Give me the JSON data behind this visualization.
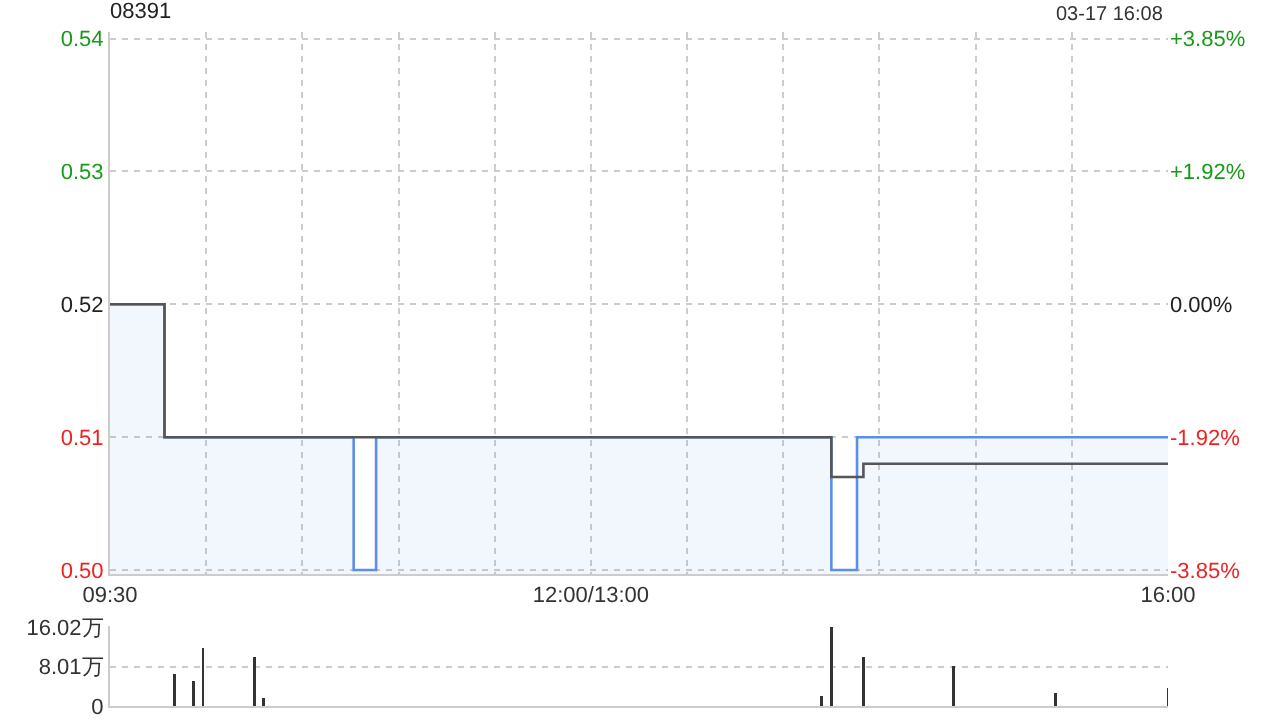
{
  "chart_data": [
    {
      "type": "line",
      "title": "08391",
      "annotations": [
        "03-17 16:08"
      ],
      "categories": [
        "09:30",
        null,
        null,
        null,
        null,
        null,
        null,
        null,
        null,
        null,
        null,
        null,
        null,
        null,
        null,
        null,
        null,
        null,
        null,
        null,
        null,
        null,
        null,
        null,
        null,
        null,
        null,
        null,
        null,
        null,
        null,
        null,
        null,
        null,
        null,
        null,
        null,
        null,
        null,
        null,
        null,
        null,
        null,
        null,
        null,
        null,
        null,
        null,
        null,
        null,
        null,
        null,
        null,
        null,
        null,
        null,
        null,
        null,
        null,
        null,
        null,
        null,
        null,
        null,
        null,
        null,
        null,
        null,
        null,
        null,
        null,
        null,
        null,
        null,
        null,
        null,
        null,
        null,
        null,
        null,
        null,
        null,
        null,
        null,
        null,
        null,
        null,
        null,
        null,
        null,
        null,
        null,
        null,
        null,
        null,
        null,
        null,
        null,
        null,
        null,
        null,
        null,
        null,
        null,
        null,
        null,
        null,
        null,
        null,
        null,
        null,
        null,
        null,
        null,
        null,
        null,
        null,
        null,
        null,
        null,
        null,
        null,
        null,
        null,
        null,
        null,
        null,
        null,
        null,
        null,
        null,
        null,
        null,
        null,
        null,
        null,
        null,
        null,
        null,
        null,
        null,
        null,
        null,
        null,
        null,
        null,
        null,
        null,
        null,
        null,
        "12:00/13:00",
        null,
        null,
        null,
        null,
        null,
        null,
        null,
        null,
        null,
        null,
        null,
        null,
        null,
        null,
        null,
        null,
        null,
        null,
        null,
        null,
        null,
        null,
        null,
        null,
        null,
        null,
        null,
        null,
        null,
        null,
        null,
        null,
        null,
        null,
        null,
        null,
        null,
        null,
        null,
        null,
        null,
        null,
        null,
        null,
        null,
        null,
        null,
        null,
        null,
        null,
        null,
        null,
        null,
        null,
        null,
        null,
        null,
        null,
        null,
        null,
        null,
        null,
        null,
        null,
        null,
        null,
        null,
        null,
        null,
        null,
        null,
        null,
        null,
        null,
        null,
        null,
        null,
        null,
        null,
        null,
        null,
        null,
        null,
        null,
        null,
        null,
        null,
        null,
        null,
        null,
        null,
        null,
        null,
        null,
        null,
        null,
        null,
        null,
        null,
        null,
        null,
        null,
        null,
        null,
        null,
        null,
        null,
        null,
        null,
        null,
        null,
        null,
        null,
        null,
        null,
        null,
        null,
        null,
        null,
        null,
        null,
        null,
        null,
        null,
        null,
        null,
        null,
        null,
        null,
        null,
        null,
        null,
        null,
        null,
        null,
        null,
        null,
        null,
        null,
        null,
        null,
        null,
        null,
        null,
        null,
        null,
        null,
        null,
        null,
        null,
        null,
        null,
        null,
        null,
        null,
        null,
        null,
        null,
        null,
        null,
        null,
        null,
        null,
        null,
        null,
        null,
        null,
        null,
        null,
        null,
        null,
        null,
        null,
        null,
        null,
        null,
        null,
        null,
        null,
        "16:00"
      ],
      "ylim": [
        0.4997,
        0.5405
      ],
      "yticks": [
        {
          "value": 0.5,
          "label": "0.50"
        },
        0.51,
        0.52,
        0.53,
        0.54
      ],
      "y2lim": [
        -3.904,
        3.942
      ],
      "y2ticks": [
        {
          "value": -3.85,
          "label": "-3.85%"
        },
        {
          "value": -1.92,
          "label": "-1.92%"
        },
        {
          "value": 0,
          "label": "0.00%"
        },
        {
          "value": 1.92,
          "label": "+1.92%"
        },
        {
          "value": 3.85,
          "label": "+3.85%"
        }
      ],
      "grid": true,
      "marker": "none",
      "series": [
        {
          "type": "area",
          "color": "#5b8ee6",
          "values": [
            0.52,
            0.52,
            0.52,
            0.52,
            0.52,
            0.52,
            0.52,
            0.52,
            0.52,
            0.52,
            0.52,
            0.52,
            0.52,
            0.52,
            0.52,
            0.52,
            0.52,
            0.51,
            0.51,
            0.51,
            0.51,
            0.51,
            0.51,
            0.51,
            0.51,
            0.51,
            0.51,
            0.51,
            0.51,
            0.51,
            0.51,
            0.51,
            0.51,
            0.51,
            0.51,
            0.51,
            0.51,
            0.51,
            0.51,
            0.51,
            0.51,
            0.51,
            0.51,
            0.51,
            0.51,
            0.51,
            0.51,
            0.51,
            0.51,
            0.51,
            0.51,
            0.51,
            0.51,
            0.51,
            0.51,
            0.51,
            0.51,
            0.51,
            0.51,
            0.51,
            0.51,
            0.51,
            0.51,
            0.51,
            0.51,
            0.51,
            0.51,
            0.51,
            0.51,
            0.51,
            0.51,
            0.51,
            0.51,
            0.51,
            0.51,
            0.51,
            0.5,
            0.5,
            0.5,
            0.5,
            0.5,
            0.5,
            0.5,
            0.51,
            0.51,
            0.51,
            0.51,
            0.51,
            0.51,
            0.51,
            0.51,
            0.51,
            0.51,
            0.51,
            0.51,
            0.51,
            0.51,
            0.51,
            0.51,
            0.51,
            0.51,
            0.51,
            0.51,
            0.51,
            0.51,
            0.51,
            0.51,
            0.51,
            0.51,
            0.51,
            0.51,
            0.51,
            0.51,
            0.51,
            0.51,
            0.51,
            0.51,
            0.51,
            0.51,
            0.51,
            0.51,
            0.51,
            0.51,
            0.51,
            0.51,
            0.51,
            0.51,
            0.51,
            0.51,
            0.51,
            0.51,
            0.51,
            0.51,
            0.51,
            0.51,
            0.51,
            0.51,
            0.51,
            0.51,
            0.51,
            0.51,
            0.51,
            0.51,
            0.51,
            0.51,
            0.51,
            0.51,
            0.51,
            0.51,
            0.51,
            0.51,
            0.51,
            0.51,
            0.51,
            0.51,
            0.51,
            0.51,
            0.51,
            0.51,
            0.51,
            0.51,
            0.51,
            0.51,
            0.51,
            0.51,
            0.51,
            0.51,
            0.51,
            0.51,
            0.51,
            0.51,
            0.51,
            0.51,
            0.51,
            0.51,
            0.51,
            0.51,
            0.51,
            0.51,
            0.51,
            0.51,
            0.51,
            0.51,
            0.51,
            0.51,
            0.51,
            0.51,
            0.51,
            0.51,
            0.51,
            0.51,
            0.51,
            0.51,
            0.51,
            0.51,
            0.51,
            0.51,
            0.51,
            0.51,
            0.51,
            0.51,
            0.51,
            0.51,
            0.51,
            0.51,
            0.51,
            0.51,
            0.51,
            0.51,
            0.51,
            0.51,
            0.51,
            0.51,
            0.51,
            0.51,
            0.51,
            0.51,
            0.51,
            0.51,
            0.51,
            0.51,
            0.51,
            0.51,
            0.51,
            0.51,
            0.5,
            0.5,
            0.5,
            0.5,
            0.5,
            0.5,
            0.5,
            0.5,
            0.51,
            0.51,
            0.51,
            0.51,
            0.51,
            0.51,
            0.51,
            0.51,
            0.51,
            0.51,
            0.51,
            0.51,
            0.51,
            0.51,
            0.51,
            0.51,
            0.51,
            0.51,
            0.51,
            0.51,
            0.51,
            0.51,
            0.51,
            0.51,
            0.51,
            0.51,
            0.51,
            0.51,
            0.51,
            0.51,
            0.51,
            0.51,
            0.51,
            0.51,
            0.51,
            0.51,
            0.51,
            0.51,
            0.51,
            0.51,
            0.51,
            0.51,
            0.51,
            0.51,
            0.51,
            0.51,
            0.51,
            0.51,
            0.51,
            0.51,
            0.51,
            0.51,
            0.51,
            0.51,
            0.51,
            0.51,
            0.51,
            0.51,
            0.51,
            0.51,
            0.51,
            0.51,
            0.51,
            0.51,
            0.51,
            0.51,
            0.51,
            0.51,
            0.51,
            0.51,
            0.51,
            0.51,
            0.51,
            0.51,
            0.51,
            0.51,
            0.51,
            0.51,
            0.51,
            0.51,
            0.51,
            0.51,
            0.51,
            0.51,
            0.51,
            0.51,
            0.51,
            0.51,
            0.51,
            0.51,
            0.51,
            0.51,
            0.51,
            0.51,
            0.51,
            0.51,
            0.51,
            0.51
          ]
        },
        {
          "type": "step",
          "color": "#555555",
          "values": [
            0.52,
            0.52,
            0.52,
            0.52,
            0.52,
            0.52,
            0.52,
            0.52,
            0.52,
            0.52,
            0.52,
            0.52,
            0.52,
            0.52,
            0.52,
            0.52,
            0.52,
            0.51,
            0.51,
            0.51,
            0.51,
            0.51,
            0.51,
            0.51,
            0.51,
            0.51,
            0.51,
            0.51,
            0.51,
            0.51,
            0.51,
            0.51,
            0.51,
            0.51,
            0.51,
            0.51,
            0.51,
            0.51,
            0.51,
            0.51,
            0.51,
            0.51,
            0.51,
            0.51,
            0.51,
            0.51,
            0.51,
            0.51,
            0.51,
            0.51,
            0.51,
            0.51,
            0.51,
            0.51,
            0.51,
            0.51,
            0.51,
            0.51,
            0.51,
            0.51,
            0.51,
            0.51,
            0.51,
            0.51,
            0.51,
            0.51,
            0.51,
            0.51,
            0.51,
            0.51,
            0.51,
            0.51,
            0.51,
            0.51,
            0.51,
            0.51,
            0.51,
            0.51,
            0.51,
            0.51,
            0.51,
            0.51,
            0.51,
            0.51,
            0.51,
            0.51,
            0.51,
            0.51,
            0.51,
            0.51,
            0.51,
            0.51,
            0.51,
            0.51,
            0.51,
            0.51,
            0.51,
            0.51,
            0.51,
            0.51,
            0.51,
            0.51,
            0.51,
            0.51,
            0.51,
            0.51,
            0.51,
            0.51,
            0.51,
            0.51,
            0.51,
            0.51,
            0.51,
            0.51,
            0.51,
            0.51,
            0.51,
            0.51,
            0.51,
            0.51,
            0.51,
            0.51,
            0.51,
            0.51,
            0.51,
            0.51,
            0.51,
            0.51,
            0.51,
            0.51,
            0.51,
            0.51,
            0.51,
            0.51,
            0.51,
            0.51,
            0.51,
            0.51,
            0.51,
            0.51,
            0.51,
            0.51,
            0.51,
            0.51,
            0.51,
            0.51,
            0.51,
            0.51,
            0.51,
            0.51,
            0.51,
            0.51,
            0.51,
            0.51,
            0.51,
            0.51,
            0.51,
            0.51,
            0.51,
            0.51,
            0.51,
            0.51,
            0.51,
            0.51,
            0.51,
            0.51,
            0.51,
            0.51,
            0.51,
            0.51,
            0.51,
            0.51,
            0.51,
            0.51,
            0.51,
            0.51,
            0.51,
            0.51,
            0.51,
            0.51,
            0.51,
            0.51,
            0.51,
            0.51,
            0.51,
            0.51,
            0.51,
            0.51,
            0.51,
            0.51,
            0.51,
            0.51,
            0.51,
            0.51,
            0.51,
            0.51,
            0.51,
            0.51,
            0.51,
            0.51,
            0.51,
            0.51,
            0.51,
            0.51,
            0.51,
            0.51,
            0.51,
            0.51,
            0.51,
            0.51,
            0.51,
            0.51,
            0.51,
            0.51,
            0.51,
            0.51,
            0.51,
            0.51,
            0.51,
            0.51,
            0.51,
            0.51,
            0.51,
            0.51,
            0.51,
            0.507,
            0.507,
            0.507,
            0.507,
            0.507,
            0.507,
            0.507,
            0.507,
            0.507,
            0.507,
            0.508,
            0.508,
            0.508,
            0.508,
            0.508,
            0.508,
            0.508,
            0.508,
            0.508,
            0.508,
            0.508,
            0.508,
            0.508,
            0.508,
            0.508,
            0.508,
            0.508,
            0.508,
            0.508,
            0.508,
            0.508,
            0.508,
            0.508,
            0.508,
            0.508,
            0.508,
            0.508,
            0.508,
            0.508,
            0.508,
            0.508,
            0.508,
            0.508,
            0.508,
            0.508,
            0.508,
            0.508,
            0.508,
            0.508,
            0.508,
            0.508,
            0.508,
            0.508,
            0.508,
            0.508,
            0.508,
            0.508,
            0.508,
            0.508,
            0.508,
            0.508,
            0.508,
            0.508,
            0.508,
            0.508,
            0.508,
            0.508,
            0.508,
            0.508,
            0.508,
            0.508,
            0.508,
            0.508,
            0.508,
            0.508,
            0.508,
            0.508,
            0.508,
            0.508,
            0.508,
            0.508,
            0.508,
            0.508,
            0.508,
            0.508,
            0.508,
            0.508,
            0.508,
            0.508,
            0.508,
            0.508,
            0.508,
            0.508,
            0.508,
            0.508,
            0.508,
            0.508,
            0.508,
            0.508,
            0.508,
            0.508,
            0.508,
            0.508,
            0.508,
            0.508,
            0.508
          ]
        }
      ]
    },
    {
      "type": "bar",
      "color": "#333333",
      "categories": [
        null,
        null,
        null,
        null,
        null,
        null,
        null,
        null,
        null,
        null,
        null,
        null,
        null,
        null,
        null,
        null,
        null,
        null,
        null,
        null,
        null,
        null,
        null,
        null,
        null,
        null,
        null,
        null,
        null,
        null,
        null,
        null,
        null,
        null,
        null,
        null,
        null,
        null,
        null,
        null,
        null,
        null,
        null,
        null,
        null,
        null,
        null,
        null,
        null,
        null,
        null,
        null,
        null,
        null,
        null,
        null,
        null,
        null,
        null,
        null,
        null,
        null,
        null,
        null,
        null,
        null,
        null,
        null,
        null,
        null,
        null,
        null,
        null,
        null,
        null,
        null,
        null,
        null,
        null,
        null,
        null,
        null,
        null,
        null,
        null,
        null,
        null,
        null,
        null,
        null,
        null,
        null,
        null,
        null,
        null,
        null,
        null,
        null,
        null,
        null,
        null,
        null,
        null,
        null,
        null,
        null,
        null,
        null,
        null,
        null,
        null,
        null,
        null,
        null,
        null,
        null,
        null,
        null,
        null,
        null,
        null,
        null,
        null,
        null,
        null,
        null,
        null,
        null,
        null,
        null,
        null,
        null,
        null,
        null,
        null,
        null,
        null,
        null,
        null,
        null,
        null,
        null,
        null,
        null,
        null,
        null,
        null,
        null,
        null,
        null,
        null,
        null,
        null,
        null,
        null,
        null,
        null,
        null,
        null,
        null,
        null,
        null,
        null,
        null,
        null,
        null,
        null,
        null,
        null,
        null,
        null,
        null,
        null,
        null,
        null,
        null,
        null,
        null,
        null,
        null,
        null,
        null,
        null,
        null,
        null,
        null,
        null,
        null,
        null,
        null,
        null,
        null,
        null,
        null,
        null,
        null,
        null,
        null,
        null,
        null,
        null,
        null,
        null,
        null,
        null,
        null,
        null,
        null,
        null,
        null,
        null,
        null,
        null,
        null,
        null,
        null,
        null,
        null,
        null,
        null,
        null,
        null,
        null,
        null,
        null,
        null,
        null,
        null,
        null,
        null,
        null,
        null,
        null,
        null,
        null,
        null,
        null,
        null,
        null,
        null,
        null,
        null,
        null,
        null,
        null,
        null,
        null,
        null,
        null,
        null,
        null,
        null,
        null,
        null,
        null,
        null,
        null,
        null,
        null,
        null,
        null,
        null,
        null,
        null,
        null,
        null,
        null,
        null,
        null,
        null,
        null,
        null,
        null,
        null,
        null,
        null,
        null,
        null,
        null,
        null,
        null,
        null,
        null,
        null,
        null,
        null,
        null,
        null,
        null,
        null,
        null,
        null,
        null,
        null,
        null,
        null,
        null,
        null,
        null,
        null,
        null,
        null,
        null,
        null,
        null,
        null,
        null,
        null,
        null,
        null,
        null,
        null,
        null,
        null,
        null,
        null,
        null,
        null,
        null,
        null,
        null,
        null,
        null,
        null,
        null,
        null,
        null,
        null,
        null,
        null,
        null
      ],
      "values": [
        0,
        0,
        0,
        0,
        0,
        0,
        0,
        0,
        0,
        0,
        0,
        0,
        0,
        0,
        0,
        0,
        0,
        0,
        0,
        0,
        6.5,
        0,
        0,
        0,
        0,
        0,
        5,
        0,
        0,
        11.9,
        0,
        0,
        0,
        0,
        0,
        0,
        0,
        0,
        0,
        0,
        0,
        0,
        0,
        0,
        0,
        9.9,
        0,
        0,
        1.7,
        0,
        0,
        0,
        0,
        0,
        0,
        0,
        0,
        0,
        0,
        0,
        0,
        0,
        0,
        0,
        0,
        0,
        0,
        0,
        0,
        0,
        0,
        0,
        0,
        0,
        0,
        0,
        0,
        0,
        0,
        0,
        0,
        0,
        0,
        0,
        0,
        0,
        0,
        0,
        0,
        0,
        0,
        0,
        0,
        0,
        0,
        0,
        0,
        0,
        0,
        0,
        0,
        0,
        0,
        0,
        0,
        0,
        0,
        0,
        0,
        0,
        0,
        0,
        0,
        0,
        0,
        0,
        0,
        0,
        0,
        0,
        0,
        0,
        0,
        0,
        0,
        0,
        0,
        0,
        0,
        0,
        0,
        0,
        0,
        0,
        0,
        0,
        0,
        0,
        0,
        0,
        0,
        0,
        0,
        0,
        0,
        0,
        0,
        0,
        0,
        0,
        0,
        0,
        0,
        0,
        0,
        0,
        0,
        0,
        0,
        0,
        0,
        0,
        0,
        0,
        0,
        0,
        0,
        0,
        0,
        0,
        0,
        0,
        0,
        0,
        0,
        0,
        0,
        0,
        0,
        0,
        0,
        0,
        0,
        0,
        0,
        0,
        0,
        0,
        0,
        0,
        0,
        0,
        0,
        0,
        0,
        0,
        0,
        0,
        0,
        0,
        0,
        0,
        0,
        0,
        0,
        0,
        0,
        0,
        0,
        0,
        0,
        0,
        0,
        0,
        0,
        0,
        0,
        0,
        0,
        0,
        0,
        0,
        2,
        0,
        0,
        16,
        0,
        0,
        0,
        0,
        0,
        0,
        0,
        0,
        0,
        9.9,
        0,
        0,
        0,
        0,
        0,
        0,
        0,
        0,
        0,
        0,
        0,
        0,
        0,
        0,
        0,
        0,
        0,
        0,
        0,
        0,
        0,
        0,
        0,
        0,
        0,
        0,
        0,
        8.1,
        0,
        0,
        0,
        0,
        0,
        0,
        0,
        0,
        0,
        0,
        0,
        0,
        0,
        0,
        0,
        0,
        0,
        0,
        0,
        0,
        0,
        0,
        0,
        0,
        0,
        0,
        0,
        0,
        0,
        0,
        0,
        2.7,
        0,
        0,
        0,
        0,
        0,
        0,
        0,
        0,
        0,
        0,
        0,
        0,
        0,
        0,
        0,
        0,
        0,
        0,
        0,
        0,
        0,
        0,
        0,
        0,
        0,
        0,
        0,
        0,
        0,
        0,
        0,
        0,
        0,
        0,
        3.7
      ],
      "ylim": [
        0,
        16.3
      ],
      "yticks": [
        0,
        {
          "value": 8.01,
          "label": "8.01万"
        },
        {
          "value": 16.02,
          "label": "16.02万"
        }
      ],
      "grid": "y"
    }
  ]
}
